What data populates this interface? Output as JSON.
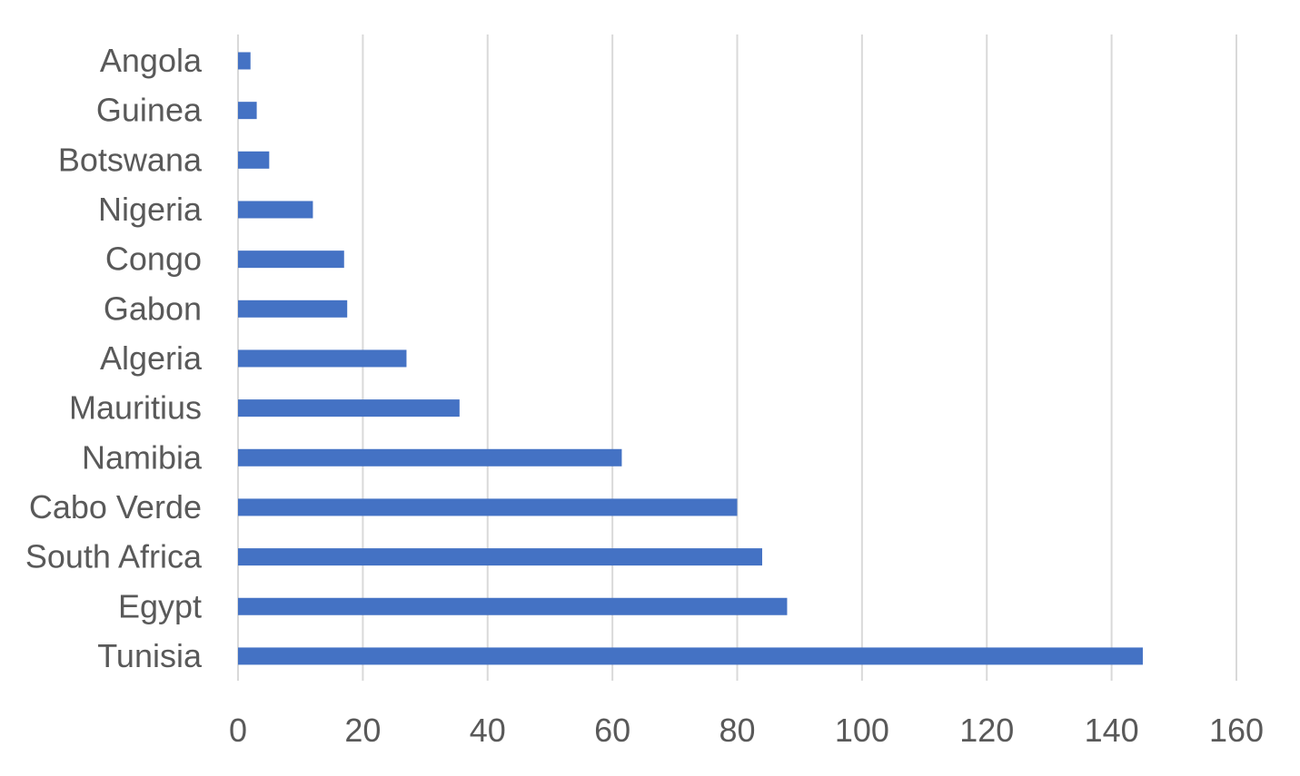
{
  "chart_data": {
    "type": "bar",
    "orientation": "horizontal",
    "categories": [
      "Angola",
      "Guinea",
      "Botswana",
      "Nigeria",
      "Congo",
      "Gabon",
      "Algeria",
      "Mauritius",
      "Namibia",
      "Cabo Verde",
      "South Africa",
      "Egypt",
      "Tunisia"
    ],
    "values": [
      2,
      3,
      5,
      12,
      17,
      17.5,
      27,
      35.5,
      61.5,
      80,
      84,
      88,
      145
    ],
    "xlim": [
      0,
      160
    ],
    "x_ticks": [
      "0",
      "20",
      "40",
      "60",
      "80",
      "100",
      "120",
      "140",
      "160"
    ],
    "grid": true,
    "legend": "none",
    "title": "",
    "xlabel": "",
    "ylabel": "",
    "colors": {
      "bar": "#4472C4",
      "grid": "#D9D9D9",
      "text": "#595959"
    }
  }
}
